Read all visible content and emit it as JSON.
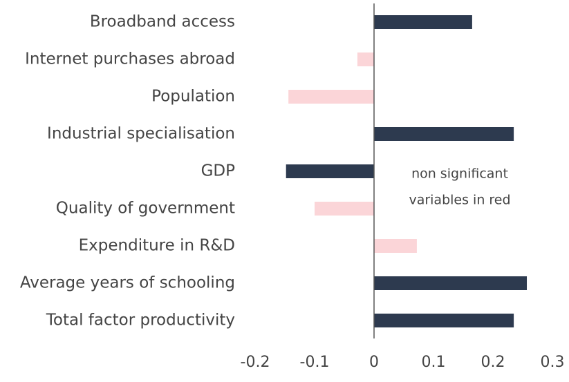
{
  "chart_data": {
    "type": "hbar",
    "categories": [
      "Broadband access",
      "Internet purchases abroad",
      "Population",
      "Industrial specialisation",
      "GDP",
      "Quality of government",
      "Expenditure in R&D",
      "Average years of schooling",
      "Total factor productivity"
    ],
    "values": [
      0.165,
      -0.028,
      -0.144,
      0.235,
      -0.148,
      -0.1,
      0.072,
      0.257,
      0.235
    ],
    "colors": [
      "#2d3a4f",
      "#fbd5d8",
      "#fbd5d8",
      "#2d3a4f",
      "#2d3a4f",
      "#fbd5d8",
      "#fbd5d8",
      "#2d3a4f",
      "#2d3a4f"
    ],
    "annotation": [
      "non significant",
      "variables in red"
    ],
    "xlim": [
      -0.2,
      0.3
    ],
    "xticks": [
      -0.2,
      -0.1,
      0,
      0.1,
      0.2,
      0.3
    ],
    "grid": false
  }
}
